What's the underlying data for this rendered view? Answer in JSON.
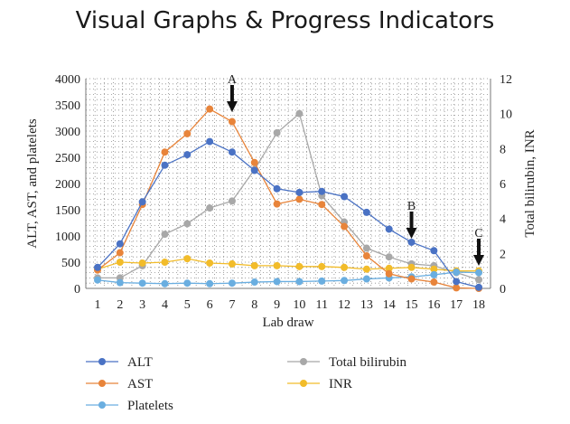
{
  "page": {
    "title": "Visual Graphs & Progress Indicators"
  },
  "chart_data": {
    "type": "line",
    "title": "",
    "xlabel": "Lab draw",
    "ylabel": "ALT, AST, and platelets",
    "y2label": "Total bilirubin, INR",
    "x": [
      1,
      2,
      3,
      4,
      5,
      6,
      7,
      8,
      9,
      10,
      11,
      12,
      13,
      14,
      15,
      16,
      17,
      18
    ],
    "ylim": [
      0,
      4000
    ],
    "yticks": [
      0,
      500,
      1000,
      1500,
      2000,
      2500,
      3000,
      3500,
      4000
    ],
    "y2lim": [
      0,
      12
    ],
    "y2ticks": [
      0,
      2,
      4,
      6,
      8,
      10,
      12
    ],
    "grid": "dotted",
    "series": [
      {
        "name": "ALT",
        "axis": "left",
        "color": "#4a72c4",
        "values": [
          400,
          850,
          1650,
          2350,
          2550,
          2800,
          2600,
          2250,
          1900,
          1830,
          1850,
          1750,
          1450,
          1130,
          880,
          720,
          130,
          20
        ]
      },
      {
        "name": "AST",
        "axis": "left",
        "color": "#e8843a",
        "values": [
          350,
          680,
          1600,
          2600,
          2950,
          3420,
          3180,
          2400,
          1610,
          1700,
          1600,
          1180,
          620,
          280,
          180,
          120,
          10,
          0
        ]
      },
      {
        "name": "Platelets",
        "axis": "left",
        "color": "#6aaee0",
        "values": [
          160,
          110,
          100,
          90,
          100,
          90,
          100,
          120,
          130,
          130,
          140,
          150,
          180,
          200,
          220,
          260,
          310,
          300
        ]
      },
      {
        "name": "Total bilirubin",
        "axis": "right",
        "color": "#a8a8a8",
        "values": [
          0.6,
          0.6,
          1.3,
          3.1,
          3.7,
          4.6,
          5.0,
          6.8,
          8.9,
          10.0,
          5.3,
          3.8,
          2.3,
          1.8,
          1.4,
          1.3,
          0.9,
          0.5
        ]
      },
      {
        "name": "INR",
        "axis": "right",
        "color": "#f2bc2a",
        "values": [
          1.1,
          1.5,
          1.45,
          1.5,
          1.7,
          1.45,
          1.4,
          1.3,
          1.3,
          1.25,
          1.25,
          1.2,
          1.1,
          1.15,
          1.2,
          1.1,
          1.0,
          1.0
        ]
      }
    ],
    "annotations": [
      {
        "label": "A",
        "x": 7
      },
      {
        "label": "B",
        "x": 15
      },
      {
        "label": "C",
        "x": 18
      }
    ],
    "legend": "bottom"
  }
}
